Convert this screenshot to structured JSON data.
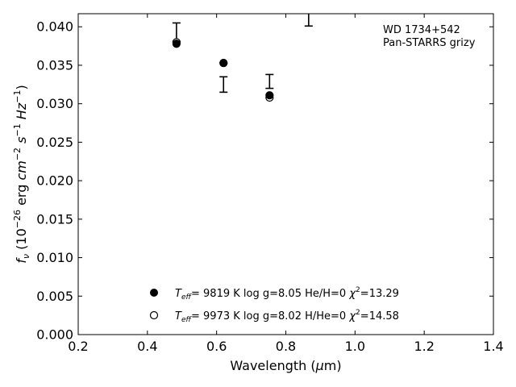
{
  "chart_data": {
    "type": "scatter",
    "xlabel": "Wavelength (μm)",
    "ylabel": "fν (10⁻²⁶ erg cm⁻² s⁻¹ Hz⁻¹)",
    "xlim": [
      0.2,
      1.4
    ],
    "ylim": [
      0.0,
      0.0417
    ],
    "xticks": [
      "0.2",
      "0.4",
      "0.6",
      "0.8",
      "1.0",
      "1.2",
      "1.4"
    ],
    "yticks": [
      "0.000",
      "0.005",
      "0.010",
      "0.015",
      "0.020",
      "0.025",
      "0.030",
      "0.035",
      "0.040"
    ],
    "annotation": [
      "WD 1734+542",
      "Pan-STARRS grizy"
    ],
    "observed": {
      "x": [
        0.484,
        0.62,
        0.753,
        0.866
      ],
      "y": [
        0.0393,
        0.0325,
        0.0329,
        0.0412
      ],
      "yerr": [
        0.0012,
        0.001,
        0.0009,
        0.0011
      ]
    },
    "series": [
      {
        "legend": [
          "9819 K",
          "log g=8.05",
          "He/H=0",
          "13.29"
        ],
        "marker": "filled-circle",
        "x": [
          0.484,
          0.62,
          0.753
        ],
        "y": [
          0.0378,
          0.0353,
          0.0311
        ]
      },
      {
        "legend": [
          "9973 K",
          "log g=8.02",
          "H/He=0",
          "14.58"
        ],
        "marker": "open-circle",
        "x": [
          0.484,
          0.62,
          0.753
        ],
        "y": [
          0.038,
          0.0353,
          0.0308
        ]
      }
    ],
    "legend_position": "bottom-center",
    "grid": false
  }
}
